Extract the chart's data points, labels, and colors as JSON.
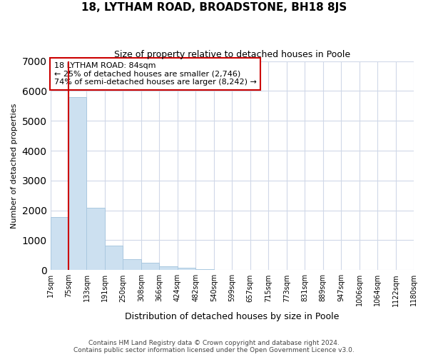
{
  "title": "18, LYTHAM ROAD, BROADSTONE, BH18 8JS",
  "subtitle": "Size of property relative to detached houses in Poole",
  "xlabel": "Distribution of detached houses by size in Poole",
  "ylabel": "Number of detached properties",
  "bin_labels": [
    "17sqm",
    "75sqm",
    "133sqm",
    "191sqm",
    "250sqm",
    "308sqm",
    "366sqm",
    "424sqm",
    "482sqm",
    "540sqm",
    "599sqm",
    "657sqm",
    "715sqm",
    "773sqm",
    "831sqm",
    "889sqm",
    "947sqm",
    "1006sqm",
    "1064sqm",
    "1122sqm",
    "1180sqm"
  ],
  "bar_values": [
    1780,
    5800,
    2080,
    810,
    360,
    235,
    115,
    75,
    40,
    0,
    0,
    0,
    0,
    0,
    0,
    0,
    0,
    0,
    0,
    0
  ],
  "bar_color": "#cce0f0",
  "bar_edge_color": "#aac8e0",
  "vline_color": "#cc0000",
  "vline_position": 1,
  "ylim": [
    0,
    7000
  ],
  "annotation_text_line1": "18 LYTHAM ROAD: 84sqm",
  "annotation_text_line2": "← 25% of detached houses are smaller (2,746)",
  "annotation_text_line3": "74% of semi-detached houses are larger (8,242) →",
  "footer_line1": "Contains HM Land Registry data © Crown copyright and database right 2024.",
  "footer_line2": "Contains public sector information licensed under the Open Government Licence v3.0.",
  "background_color": "#ffffff",
  "grid_color": "#d0d8e8",
  "title_fontsize": 11,
  "subtitle_fontsize": 9,
  "ylabel_fontsize": 8,
  "xlabel_fontsize": 9,
  "tick_fontsize": 7,
  "annotation_fontsize": 8,
  "footer_fontsize": 6.5
}
